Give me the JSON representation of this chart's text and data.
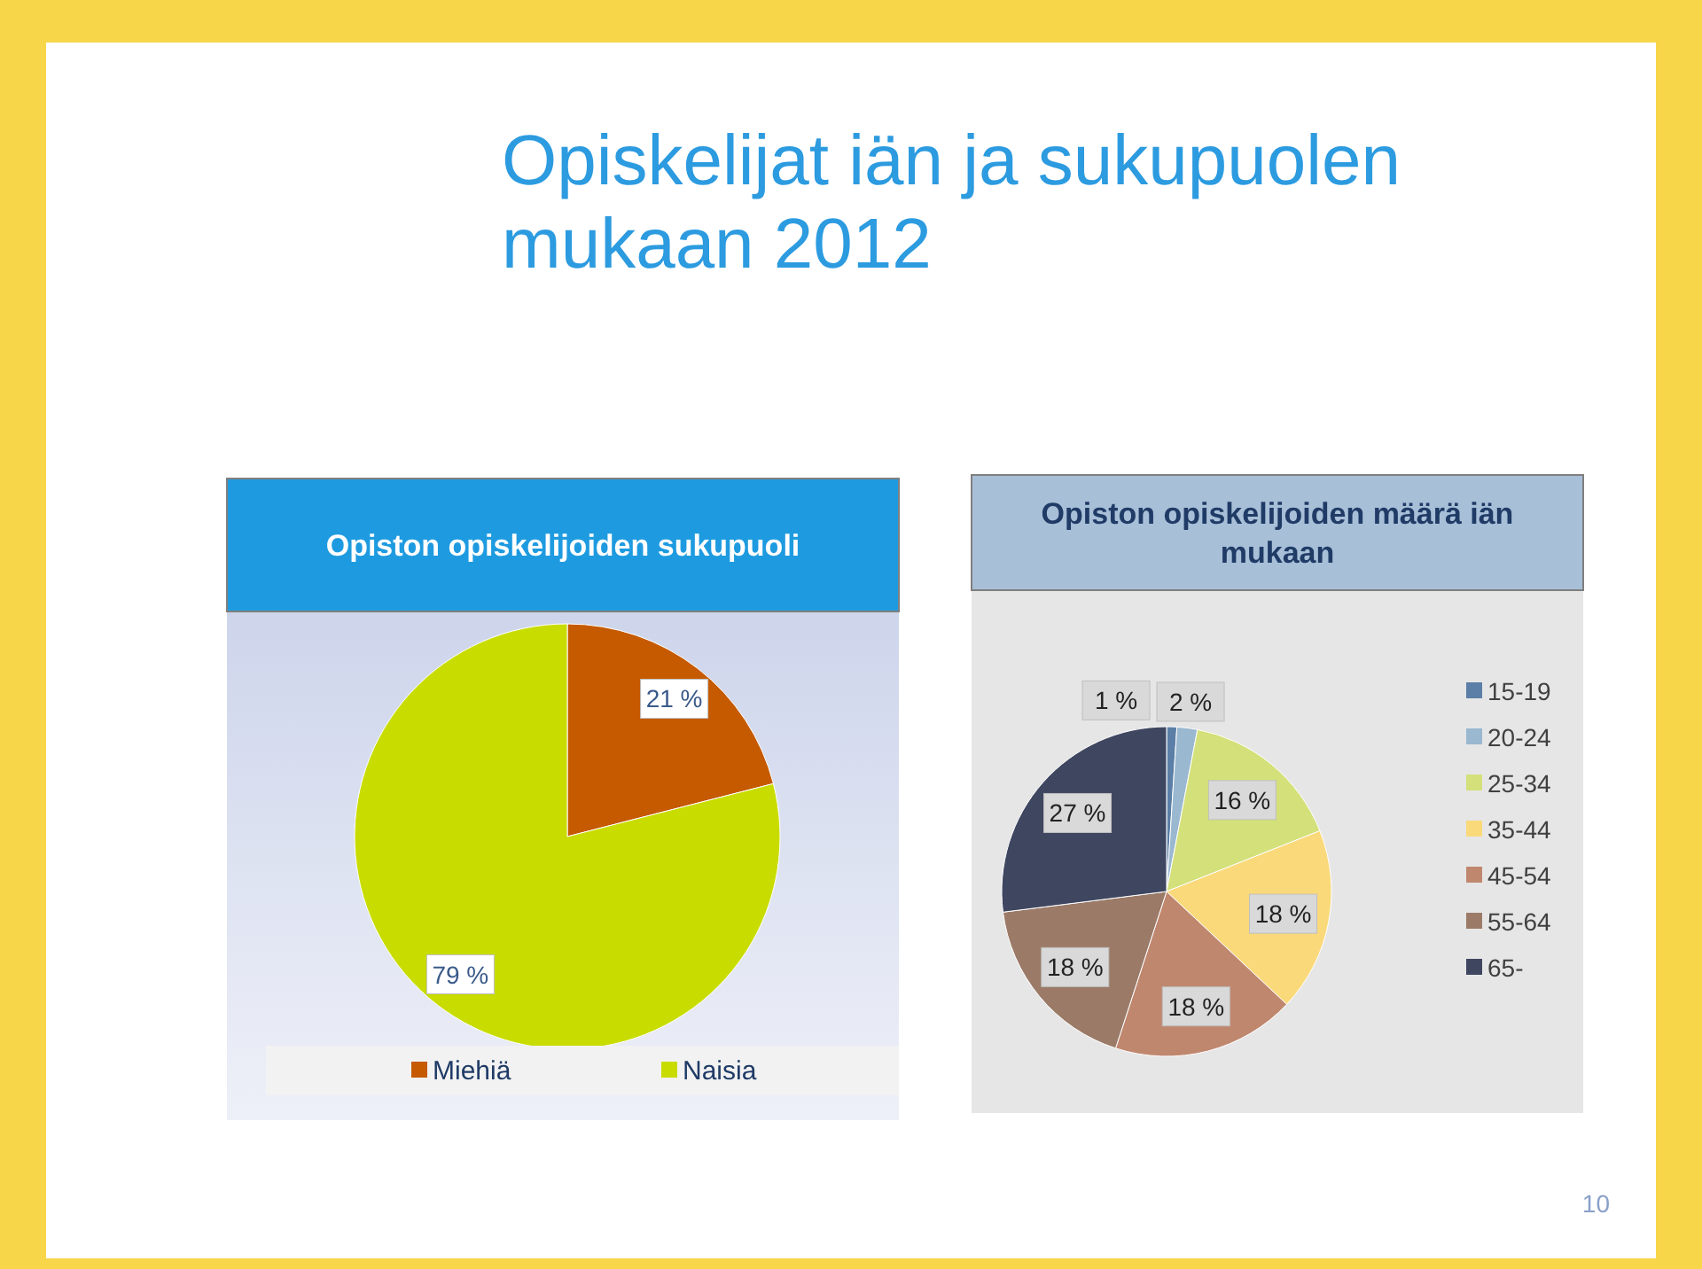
{
  "chart_data": [
    {
      "type": "pie",
      "title": "Opiston opiskelijoiden sukupuoli",
      "annotations": [
        "Opiskelijat iän ja sukupuolen mukaan 2012"
      ],
      "categories": [
        "Miehiä",
        "Naisia"
      ],
      "values": [
        21,
        79
      ],
      "colors": [
        "#c55a00",
        "#c8dc00"
      ],
      "value_labels": [
        "21 %",
        "79 %"
      ],
      "legend": "bottom"
    },
    {
      "type": "pie",
      "title": "Opiston opiskelijoiden määrä iän mukaan",
      "annotations": [
        "10"
      ],
      "categories": [
        "15-19",
        "20-24",
        "25-34",
        "35-44",
        "45-54",
        "55-64",
        "65-"
      ],
      "values": [
        1,
        2,
        16,
        18,
        18,
        18,
        27
      ],
      "colors": [
        "#5b7fa6",
        "#9ab8d0",
        "#d4e07a",
        "#fad97a",
        "#c0876f",
        "#9b7b68",
        "#3f4660"
      ],
      "value_labels": [
        "1 %",
        "2 %",
        "16 %",
        "18 %",
        "18 %",
        "18 %",
        "27 %"
      ],
      "legend": "right"
    }
  ]
}
